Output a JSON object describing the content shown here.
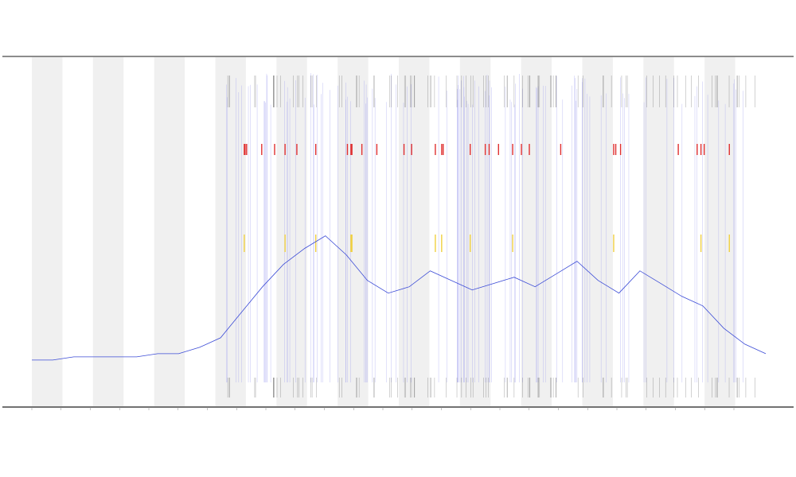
{
  "chart_data": {
    "type": "line",
    "title": "",
    "xlabel": "",
    "ylabel": "",
    "grid": false,
    "legend": "none",
    "band_count": 24,
    "x_ticks": [
      "",
      "",
      "",
      "",
      "",
      "",
      "",
      "",
      "",
      "",
      "",
      "",
      "",
      "",
      "",
      "",
      "",
      "",
      "",
      "",
      "",
      "",
      "",
      "",
      ""
    ],
    "series": [
      {
        "color": "#3b4bd6",
        "values": [
          5,
          5,
          6,
          6,
          6,
          6,
          7,
          7,
          9,
          12,
          20,
          28,
          35,
          40,
          44,
          38,
          30,
          26,
          28,
          33,
          30,
          27,
          29,
          31,
          28,
          32,
          36,
          30,
          26,
          33,
          29,
          25,
          22,
          15,
          10,
          7
        ]
      }
    ],
    "ylim": [
      0,
      100
    ],
    "colors": {
      "band": "#f0f0f0",
      "axis": "#555555",
      "spike": "#9a9aee",
      "red": "#e03030",
      "yellow": "#f0d040",
      "rug": "#222222"
    }
  }
}
